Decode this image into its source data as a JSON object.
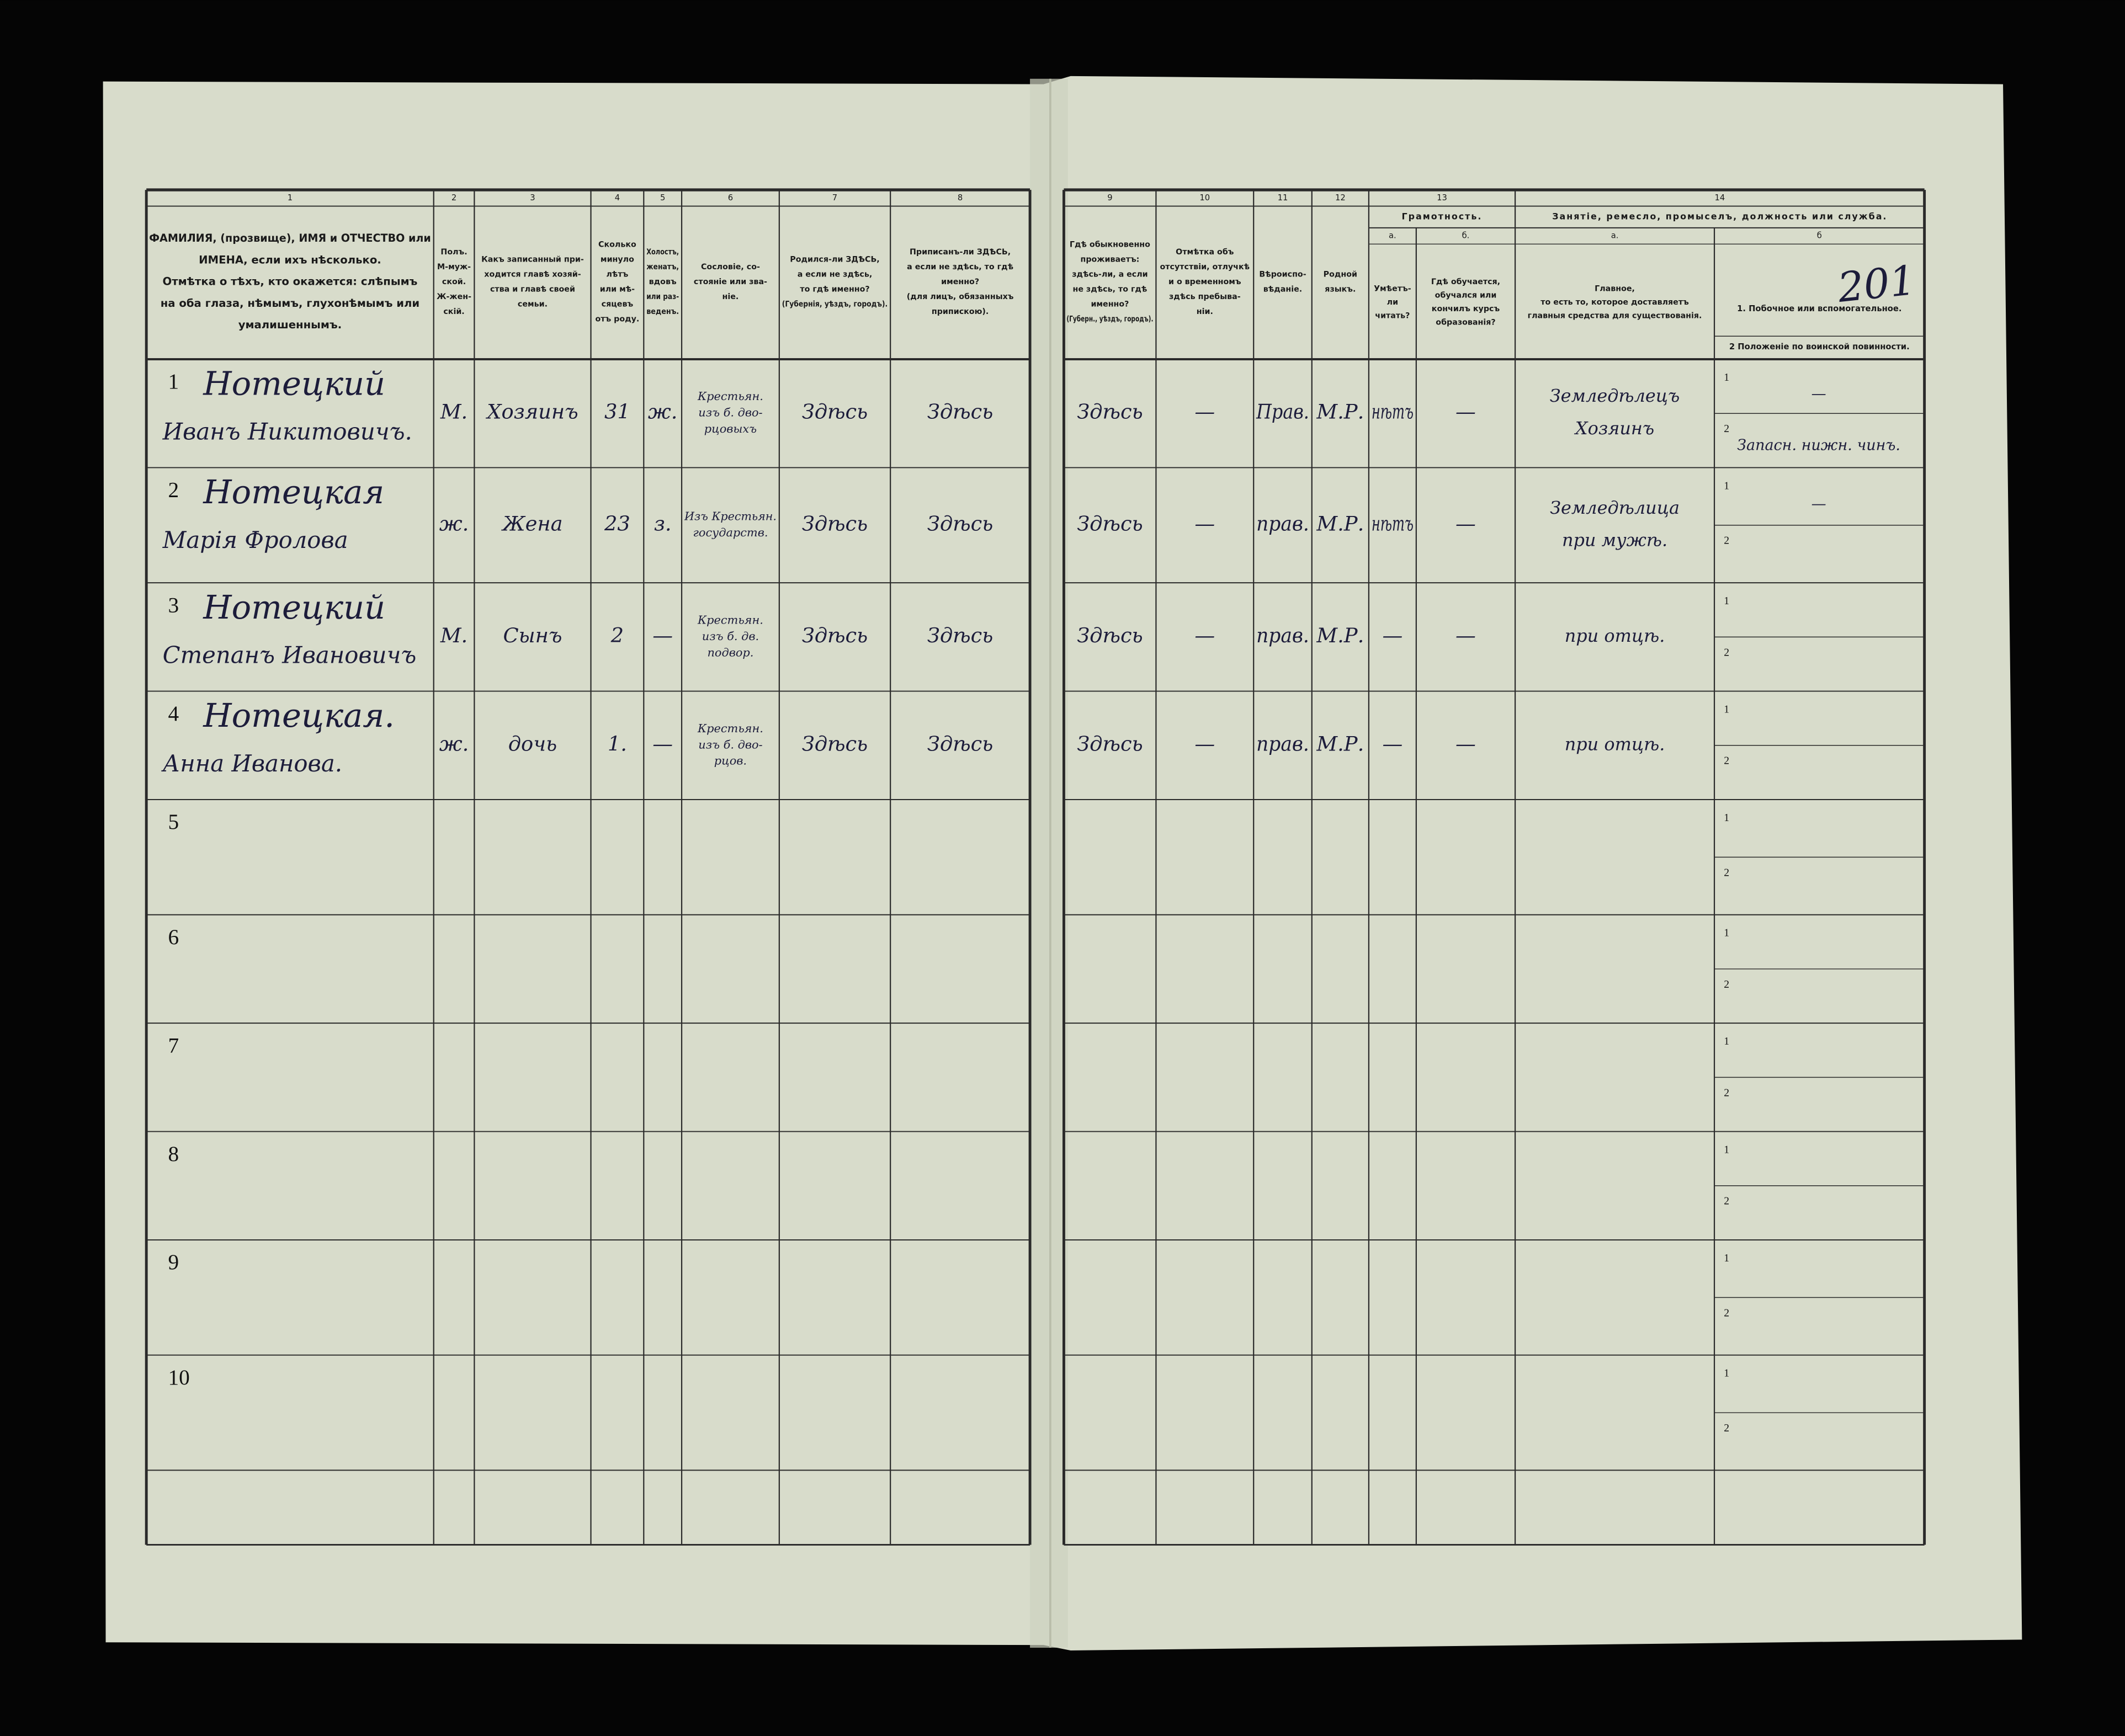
{
  "page_number": "201",
  "table": {
    "columns": [
      {
        "number": "1",
        "header": [
          "ФАМИЛИЯ, (прозвище), ИМЯ и ОТЧЕСТВО или",
          "ИМЕНА, если ихъ нѣсколько.",
          "Отмѣтка о тѣхъ, кто окажется: слѣпымъ",
          "на оба глаза, нѣмымъ, глухонѣмымъ или",
          "умалишеннымъ."
        ]
      },
      {
        "number": "2",
        "header": [
          "Полъ.",
          "М-муж-",
          "ской.",
          "Ж-жен-",
          "скій."
        ]
      },
      {
        "number": "3",
        "header": [
          "Какъ записанный при-",
          "ходится главѣ хозяй-",
          "ства и главѣ своей",
          "семьи."
        ]
      },
      {
        "number": "4",
        "header": [
          "Сколько",
          "минуло",
          "лѣтъ",
          "или мѣ-",
          "сяцевъ",
          "отъ роду."
        ]
      },
      {
        "number": "5",
        "header": [
          "Холостъ,",
          "женатъ,",
          "вдовъ",
          "или раз-",
          "веденъ."
        ]
      },
      {
        "number": "6",
        "header": [
          "Сословіе, со-",
          "стояніе или зва-",
          "ніе."
        ]
      },
      {
        "number": "7",
        "header": [
          "Родился-ли ЗДѢСЬ,",
          "а если не здѣсь,",
          "то гдѣ именно?",
          "(Губернія, уѣздъ, городъ)."
        ]
      },
      {
        "number": "8",
        "header": [
          "Приписанъ-ли ЗДѢСЬ,",
          "а если не здѣсь, то гдѣ",
          "именно?",
          "(для лицъ, обязанныхъ",
          "припискою)."
        ]
      },
      {
        "number": "9",
        "header": [
          "Гдѣ обыкновенно",
          "проживаетъ:",
          "здѣсь-ли, а если",
          "не здѣсь, то гдѣ",
          "именно?",
          "(Губерн., уѣздъ, городъ)."
        ]
      },
      {
        "number": "10",
        "header": [
          "Отмѣтка объ",
          "отсутствіи, отлучкѣ",
          "и о временномъ",
          "здѣсь пребыва-",
          "ніи."
        ]
      },
      {
        "number": "11",
        "header": [
          "Вѣроиспо-",
          "вѣданіе."
        ]
      },
      {
        "number": "12",
        "header": [
          "Родной",
          "языкъ."
        ]
      },
      {
        "number": "13",
        "group": "Грамотность.",
        "sub": [
          {
            "letter": "а.",
            "header": [
              "Умѣетъ-",
              "ли",
              "читать?"
            ]
          },
          {
            "letter": "б.",
            "header": [
              "Гдѣ обучается,",
              "обучался или",
              "кончилъ курсъ",
              "образованія?"
            ]
          }
        ]
      },
      {
        "number": "14",
        "group": "Занятіе, ремесло, промыселъ, должность или служба.",
        "sub": [
          {
            "letter": "а.",
            "header": [
              "Главное,",
              "то есть то, которое доставляетъ",
              "главныя средства для существованія."
            ]
          },
          {
            "letter": "б",
            "header": [
              "1. Побочное или вспомогательное.",
              "2 Положеніе по воинской повинности."
            ]
          }
        ]
      }
    ],
    "row_sublabels": [
      "1",
      "2"
    ],
    "rows": [
      {
        "number": "1",
        "cells": {
          "c1": [
            "Нотецкий",
            "Иванъ Никитовичъ."
          ],
          "c2": "М.",
          "c3": "Хозяинъ",
          "c4": "31",
          "c5": "ж.",
          "c6": [
            "Крестьян.",
            "изъ б. дво-",
            "рцовыхъ"
          ],
          "c7": "Здѣсь",
          "c8": "Здѣсь",
          "c9": "Здѣсь",
          "c10": "—",
          "c11": "Прав.",
          "c12": "М.Р.",
          "c13a": "нѣтъ",
          "c13b": "—",
          "c14a": [
            "Земледѣлецъ",
            "Хозяинъ"
          ],
          "c14b1": "—",
          "c14b2": "Запасн. нижн. чинъ."
        }
      },
      {
        "number": "2",
        "cells": {
          "c1": [
            "Нотецкая",
            "Марія Фролова"
          ],
          "c2": "ж.",
          "c3": "Жена",
          "c4": "23",
          "c5": "з.",
          "c6": [
            "Изъ Крестьян.",
            "государств."
          ],
          "c7": "Здѣсь",
          "c8": "Здѣсь",
          "c9": "Здѣсь",
          "c10": "—",
          "c11": "прав.",
          "c12": "М.Р.",
          "c13a": "нѣтъ",
          "c13b": "—",
          "c14a": [
            "Земледѣлица",
            "при мужѣ."
          ],
          "c14b1": "—"
        }
      },
      {
        "number": "3",
        "cells": {
          "c1": [
            "Нотецкий",
            "Степанъ Ивановичъ"
          ],
          "c2": "М.",
          "c3": "Сынъ",
          "c4": "2",
          "c5": "—",
          "c6": [
            "Крестьян.",
            "изъ б. дв.",
            "подвор."
          ],
          "c7": "Здѣсь",
          "c8": "Здѣсь",
          "c9": "Здѣсь",
          "c10": "—",
          "c11": "прав.",
          "c12": "М.Р.",
          "c13a": "—",
          "c13b": "—",
          "c14a": [
            "при отцѣ."
          ]
        }
      },
      {
        "number": "4",
        "cells": {
          "c1": [
            "Нотецкая.",
            "Анна Иванова."
          ],
          "c2": "ж.",
          "c3": "дочь",
          "c4": "1.",
          "c5": "—",
          "c6": [
            "Крестьян.",
            "изъ б. дво-",
            "рцов."
          ],
          "c7": "Здѣсь",
          "c8": "Здѣсь",
          "c9": "Здѣсь",
          "c10": "—",
          "c11": "прав.",
          "c12": "М.Р.",
          "c13a": "—",
          "c13b": "—",
          "c14a": [
            "при отцѣ."
          ]
        }
      },
      {
        "number": "5",
        "cells": {}
      },
      {
        "number": "6",
        "cells": {}
      },
      {
        "number": "7",
        "cells": {}
      },
      {
        "number": "8",
        "cells": {}
      },
      {
        "number": "9",
        "cells": {}
      },
      {
        "number": "10",
        "cells": {}
      }
    ]
  }
}
